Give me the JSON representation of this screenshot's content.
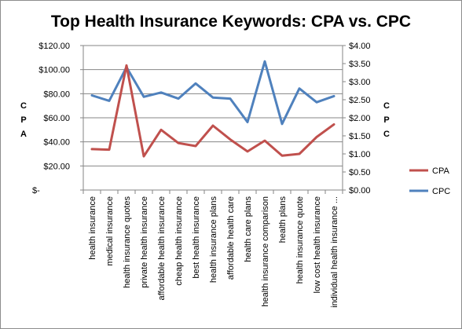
{
  "chart_data": {
    "type": "line",
    "title": "Top Health Insurance Keywords: CPA vs. CPC",
    "categories": [
      "health insurance",
      "medical insurance",
      "health insurance quotes",
      "private health insurance",
      "affordable health insurance",
      "cheap health insurance",
      "best health insurance",
      "health insurance plans",
      "affordable health care",
      "health care plans",
      "health insurance comparison",
      "health plans",
      "health insurance quote",
      "low cost health insurance",
      "individual health insurance ..."
    ],
    "y_left": {
      "label": "CPA",
      "ylim": [
        0,
        120
      ],
      "ticks": [
        0,
        20,
        40,
        60,
        80,
        100,
        120
      ],
      "tick_labels": [
        "$-",
        "$20.00",
        "$40.00",
        "$60.00",
        "$80.00",
        "$100.00",
        "$120.00"
      ]
    },
    "y_right": {
      "label": "CPC",
      "ylim": [
        0,
        4
      ],
      "ticks": [
        0,
        0.5,
        1,
        1.5,
        2,
        2.5,
        3,
        3.5,
        4
      ],
      "tick_labels": [
        "$0.00",
        "$0.50",
        "$1.00",
        "$1.50",
        "$2.00",
        "$2.50",
        "$3.00",
        "$3.50",
        "$4.00"
      ]
    },
    "series": [
      {
        "name": "CPA",
        "axis": "left",
        "color": "#c0504d",
        "values": [
          34,
          33.5,
          103.5,
          28,
          50,
          39,
          36.5,
          53.5,
          42,
          32,
          41,
          28.5,
          30,
          44,
          54.5
        ]
      },
      {
        "name": "CPC",
        "axis": "right",
        "color": "#4f81bd",
        "values": [
          2.62,
          2.47,
          3.4,
          2.58,
          2.7,
          2.53,
          2.95,
          2.56,
          2.53,
          1.88,
          3.56,
          1.83,
          2.81,
          2.43,
          2.6
        ]
      }
    ],
    "grid": "horizontal",
    "legend_position": "right"
  }
}
